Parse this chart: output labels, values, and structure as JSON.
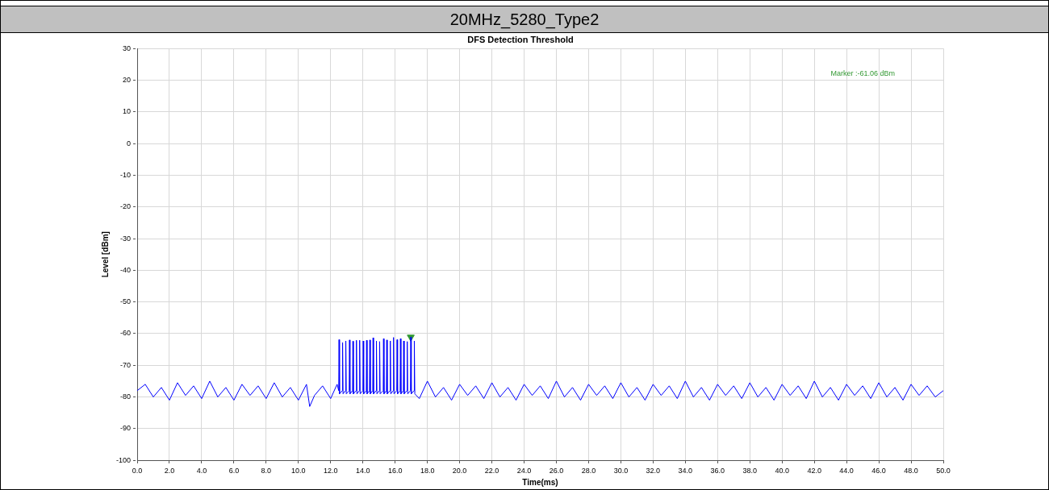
{
  "chart_data": {
    "type": "line",
    "title": "20MHz_5280_Type2",
    "subtitle": "DFS Detection Threshold",
    "xlabel": "Time(ms)",
    "ylabel": "Level [dBm]",
    "annotations": [
      "Marker :-61.06 dBm"
    ],
    "xlim": [
      0,
      50
    ],
    "ylim": [
      -100,
      30
    ],
    "xticks": [
      {
        "value": 0,
        "label": "0.0"
      },
      {
        "value": 2,
        "label": "2.0"
      },
      {
        "value": 4,
        "label": "4.0"
      },
      {
        "value": 6,
        "label": "6.0"
      },
      {
        "value": 8,
        "label": "8.0"
      },
      {
        "value": 10,
        "label": "10.0"
      },
      {
        "value": 12,
        "label": "12.0"
      },
      {
        "value": 14,
        "label": "14.0"
      },
      {
        "value": 16,
        "label": "16.0"
      },
      {
        "value": 18,
        "label": "18.0"
      },
      {
        "value": 20,
        "label": "20.0"
      },
      {
        "value": 22,
        "label": "22.0"
      },
      {
        "value": 24,
        "label": "24.0"
      },
      {
        "value": 26,
        "label": "26.0"
      },
      {
        "value": 28,
        "label": "28.0"
      },
      {
        "value": 30,
        "label": "30.0"
      },
      {
        "value": 32,
        "label": "32.0"
      },
      {
        "value": 34,
        "label": "34.0"
      },
      {
        "value": 36,
        "label": "36.0"
      },
      {
        "value": 38,
        "label": "38.0"
      },
      {
        "value": 40,
        "label": "40.0"
      },
      {
        "value": 42,
        "label": "42.0"
      },
      {
        "value": 44,
        "label": "44.0"
      },
      {
        "value": 46,
        "label": "46.0"
      },
      {
        "value": 48,
        "label": "48.0"
      },
      {
        "value": 50,
        "label": "50.0"
      }
    ],
    "yticks": [
      -100,
      -90,
      -80,
      -70,
      -60,
      -50,
      -40,
      -30,
      -20,
      -10,
      0,
      10,
      20,
      30
    ],
    "grid": true,
    "series": [
      {
        "color": "#0000ff",
        "marker": "none",
        "line_style": "solid",
        "x": [
          0,
          0.5,
          1,
          1.5,
          2,
          2.5,
          3,
          3.5,
          4,
          4.5,
          5,
          5.5,
          6,
          6.5,
          7,
          7.5,
          8,
          8.5,
          9,
          9.5,
          10,
          10.5,
          10.7,
          11,
          11.5,
          12,
          12.4,
          12.5,
          12.52,
          12.55,
          12.72,
          12.74,
          12.77,
          12.92,
          12.94,
          12.97,
          13.15,
          13.17,
          13.2,
          13.36,
          13.38,
          13.41,
          13.58,
          13.6,
          13.63,
          13.78,
          13.8,
          13.83,
          14,
          14.02,
          14.05,
          14.21,
          14.23,
          14.26,
          14.41,
          14.43,
          14.46,
          14.61,
          14.63,
          14.66,
          14.82,
          14.84,
          14.87,
          15.02,
          15.04,
          15.07,
          15.26,
          15.28,
          15.31,
          15.46,
          15.48,
          15.51,
          15.68,
          15.7,
          15.73,
          15.88,
          15.9,
          15.93,
          16.1,
          16.12,
          16.15,
          16.31,
          16.33,
          16.36,
          16.51,
          16.53,
          16.56,
          16.73,
          16.75,
          16.78,
          16.95,
          16.97,
          17,
          17.17,
          17.19,
          17.22,
          17.5,
          18,
          18.5,
          19,
          19.5,
          20,
          20.5,
          21,
          21.5,
          22,
          22.5,
          23,
          23.5,
          24,
          24.5,
          25,
          25.5,
          26,
          26.5,
          27,
          27.5,
          28,
          28.5,
          29,
          29.5,
          30,
          30.5,
          31,
          31.5,
          32,
          32.5,
          33,
          33.5,
          34,
          34.5,
          35,
          35.5,
          36,
          36.5,
          37,
          37.5,
          38,
          38.5,
          39,
          39.5,
          40,
          40.5,
          41,
          41.5,
          42,
          42.5,
          43,
          43.5,
          44,
          44.5,
          45,
          45.5,
          46,
          46.5,
          47,
          47.5,
          48,
          48.5,
          49,
          49.5,
          50
        ],
        "values": [
          -78,
          -76,
          -80,
          -77,
          -81,
          -75.5,
          -79.5,
          -76.5,
          -80.5,
          -75,
          -80,
          -77,
          -81,
          -76,
          -79.5,
          -76.5,
          -80.5,
          -75.5,
          -80,
          -77,
          -81,
          -76,
          -83,
          -79.5,
          -76.5,
          -80.5,
          -76,
          -78,
          -61.9,
          -79,
          -78,
          -62.8,
          -79,
          -78,
          -62.3,
          -79,
          -78,
          -62,
          -79,
          -78,
          -62.4,
          -79,
          -78,
          -62.1,
          -79,
          -78,
          -62.1,
          -79,
          -78,
          -62.3,
          -79,
          -78,
          -62.1,
          -79,
          -78,
          -62,
          -79,
          -78,
          -61.3,
          -79,
          -78,
          -62.3,
          -79,
          -78,
          -62.5,
          -79,
          -78,
          -61.6,
          -79,
          -78,
          -62,
          -79,
          -78,
          -62.3,
          -79,
          -78,
          -61.2,
          -79,
          -78,
          -61.9,
          -79,
          -78,
          -61.6,
          -79,
          -78,
          -62.3,
          -79,
          -78,
          -62.5,
          -79,
          -78,
          -61.1,
          -79,
          -78,
          -62.3,
          -79,
          -80.5,
          -75,
          -80,
          -77,
          -81,
          -76,
          -79.5,
          -76.5,
          -80.5,
          -75.5,
          -80,
          -77,
          -81,
          -76,
          -79.5,
          -76.5,
          -80.5,
          -75,
          -80,
          -77,
          -81,
          -76,
          -79.5,
          -76.5,
          -80.5,
          -75.5,
          -80,
          -77,
          -81,
          -76,
          -79.5,
          -76.5,
          -80.5,
          -75,
          -80,
          -77,
          -81,
          -76,
          -79.5,
          -76.5,
          -80.5,
          -75.5,
          -80,
          -77,
          -81,
          -76,
          -79.5,
          -76.5,
          -80.5,
          -75,
          -80,
          -77,
          -81,
          -76,
          -79.5,
          -76.5,
          -80.5,
          -75.5,
          -80,
          -77,
          -81,
          -76,
          -79.5,
          -76.5,
          -80,
          -78
        ]
      },
      {
        "type": "scatter",
        "color": "#339933",
        "marker": "triangle",
        "x": [
          16.97
        ],
        "values": [
          -61.1
        ]
      }
    ]
  }
}
